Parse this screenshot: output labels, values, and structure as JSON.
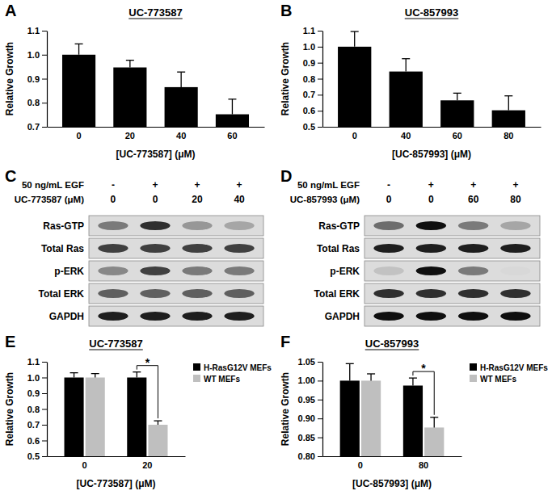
{
  "chart_data": [
    {
      "type": "bar",
      "title": "UC-773587",
      "x_label": "[UC-773587] (μM)",
      "y_label": "Relative Growth",
      "categories": [
        "0",
        "20",
        "40",
        "60"
      ],
      "values": [
        1.0,
        0.947,
        0.865,
        0.752
      ],
      "errors": [
        0.045,
        0.03,
        0.063,
        0.063
      ],
      "color": "#000000",
      "ylim": [
        0.7,
        1.1
      ],
      "yticks": [
        0.7,
        0.8,
        0.9,
        {
          "value": 1,
          "label": "1.0"
        },
        1.1
      ],
      "annotations": [
        {
          "text": "A"
        }
      ]
    },
    {
      "type": "bar",
      "title": "UC-857993",
      "x_label": "[UC-857993] (μM)",
      "y_label": "Relative Growth",
      "categories": [
        "0",
        "40",
        "60",
        "80"
      ],
      "values": [
        1.0,
        0.845,
        0.665,
        0.603
      ],
      "errors": [
        0.095,
        0.08,
        0.045,
        0.09
      ],
      "color": "#000000",
      "ylim": [
        0.5,
        1.1
      ],
      "yticks": [
        0.5,
        0.6,
        0.7,
        0.8,
        0.9,
        {
          "value": 1,
          "label": "1.0"
        },
        1.1
      ],
      "annotations": [
        {
          "text": "B"
        }
      ]
    },
    {
      "type": "blot",
      "treatments": [
        {
          "label": "50 ng/mL EGF",
          "lanes": [
            "-",
            "+",
            "+",
            "+"
          ]
        },
        {
          "label": "UC-773587 (μM)",
          "lanes": [
            0,
            0,
            20,
            40
          ]
        }
      ],
      "rows": [
        {
          "name": "Ras-GTP",
          "values": [
            0.6,
            0.85,
            0.5,
            0.45
          ]
        },
        {
          "name": "Total Ras",
          "values": [
            0.8,
            0.8,
            0.8,
            0.8
          ]
        },
        {
          "name": "p-ERK",
          "values": [
            0.55,
            0.8,
            0.6,
            0.6
          ]
        },
        {
          "name": "Total ERK",
          "values": [
            0.7,
            0.7,
            0.7,
            0.7
          ]
        },
        {
          "name": "GAPDH",
          "values": [
            0.9,
            0.9,
            0.9,
            0.9
          ]
        }
      ],
      "annotations": [
        {
          "text": "C"
        }
      ]
    },
    {
      "type": "blot",
      "treatments": [
        {
          "label": "50 ng/mL EGF",
          "lanes": [
            "-",
            "+",
            "+",
            "+"
          ]
        },
        {
          "label": "UC-857993 (μM)",
          "lanes": [
            0,
            0,
            60,
            80
          ]
        }
      ],
      "rows": [
        {
          "name": "Ras-GTP",
          "values": [
            0.65,
            0.95,
            0.6,
            0.45
          ]
        },
        {
          "name": "Total Ras",
          "values": [
            0.9,
            0.9,
            0.9,
            0.9
          ]
        },
        {
          "name": "p-ERK",
          "values": [
            0.35,
            0.95,
            0.6,
            0.25
          ]
        },
        {
          "name": "Total ERK",
          "values": [
            0.85,
            0.85,
            0.85,
            0.85
          ]
        },
        {
          "name": "GAPDH",
          "values": [
            0.95,
            0.95,
            0.95,
            0.95
          ]
        }
      ],
      "annotations": [
        {
          "text": "D"
        }
      ]
    },
    {
      "type": "bar",
      "title": "UC-773587",
      "x_label": "[UC-773587] (μM)",
      "y_label": "Relative Growth",
      "categories": [
        "0",
        "20"
      ],
      "series": [
        {
          "name": "H-RasG12V MEFs",
          "color": "#000000",
          "values": [
            1.0,
            1.0
          ],
          "errors": [
            0.03,
            0.035
          ]
        },
        {
          "name": "WT MEFs",
          "color": "#bfbfbf",
          "values": [
            1.0,
            0.7
          ],
          "errors": [
            0.025,
            0.025
          ]
        }
      ],
      "ylim": [
        0.5,
        1.1
      ],
      "yticks": [
        0.5,
        0.6,
        0.7,
        0.8,
        0.9,
        {
          "value": 1,
          "label": "1.0"
        },
        1.1
      ],
      "legend": "upper right",
      "annotations": [
        {
          "text": "E"
        },
        {
          "text": "*",
          "category": "20"
        }
      ]
    },
    {
      "type": "bar",
      "title": "UC-857993",
      "x_label": "[UC-857993] (μM)",
      "y_label": "Relative Growth",
      "categories": [
        "0",
        "80"
      ],
      "series": [
        {
          "name": "H-RasG12V MEFs",
          "color": "#000000",
          "values": [
            1.0,
            0.987
          ],
          "errors": [
            0.045,
            0.02
          ]
        },
        {
          "name": "WT MEFs",
          "color": "#bfbfbf",
          "values": [
            1.0,
            0.876
          ],
          "errors": [
            0.018,
            0.027
          ]
        }
      ],
      "ylim": [
        0.8,
        1.05
      ],
      "yticks": [
        {
          "value": 0.8,
          "label": "0.80"
        },
        0.85,
        {
          "value": 0.9,
          "label": "0.90"
        },
        0.95,
        {
          "value": 1,
          "label": "1.00"
        },
        1.05
      ],
      "legend": "upper right",
      "annotations": [
        {
          "text": "F"
        },
        {
          "text": "*",
          "category": "80"
        }
      ]
    }
  ]
}
